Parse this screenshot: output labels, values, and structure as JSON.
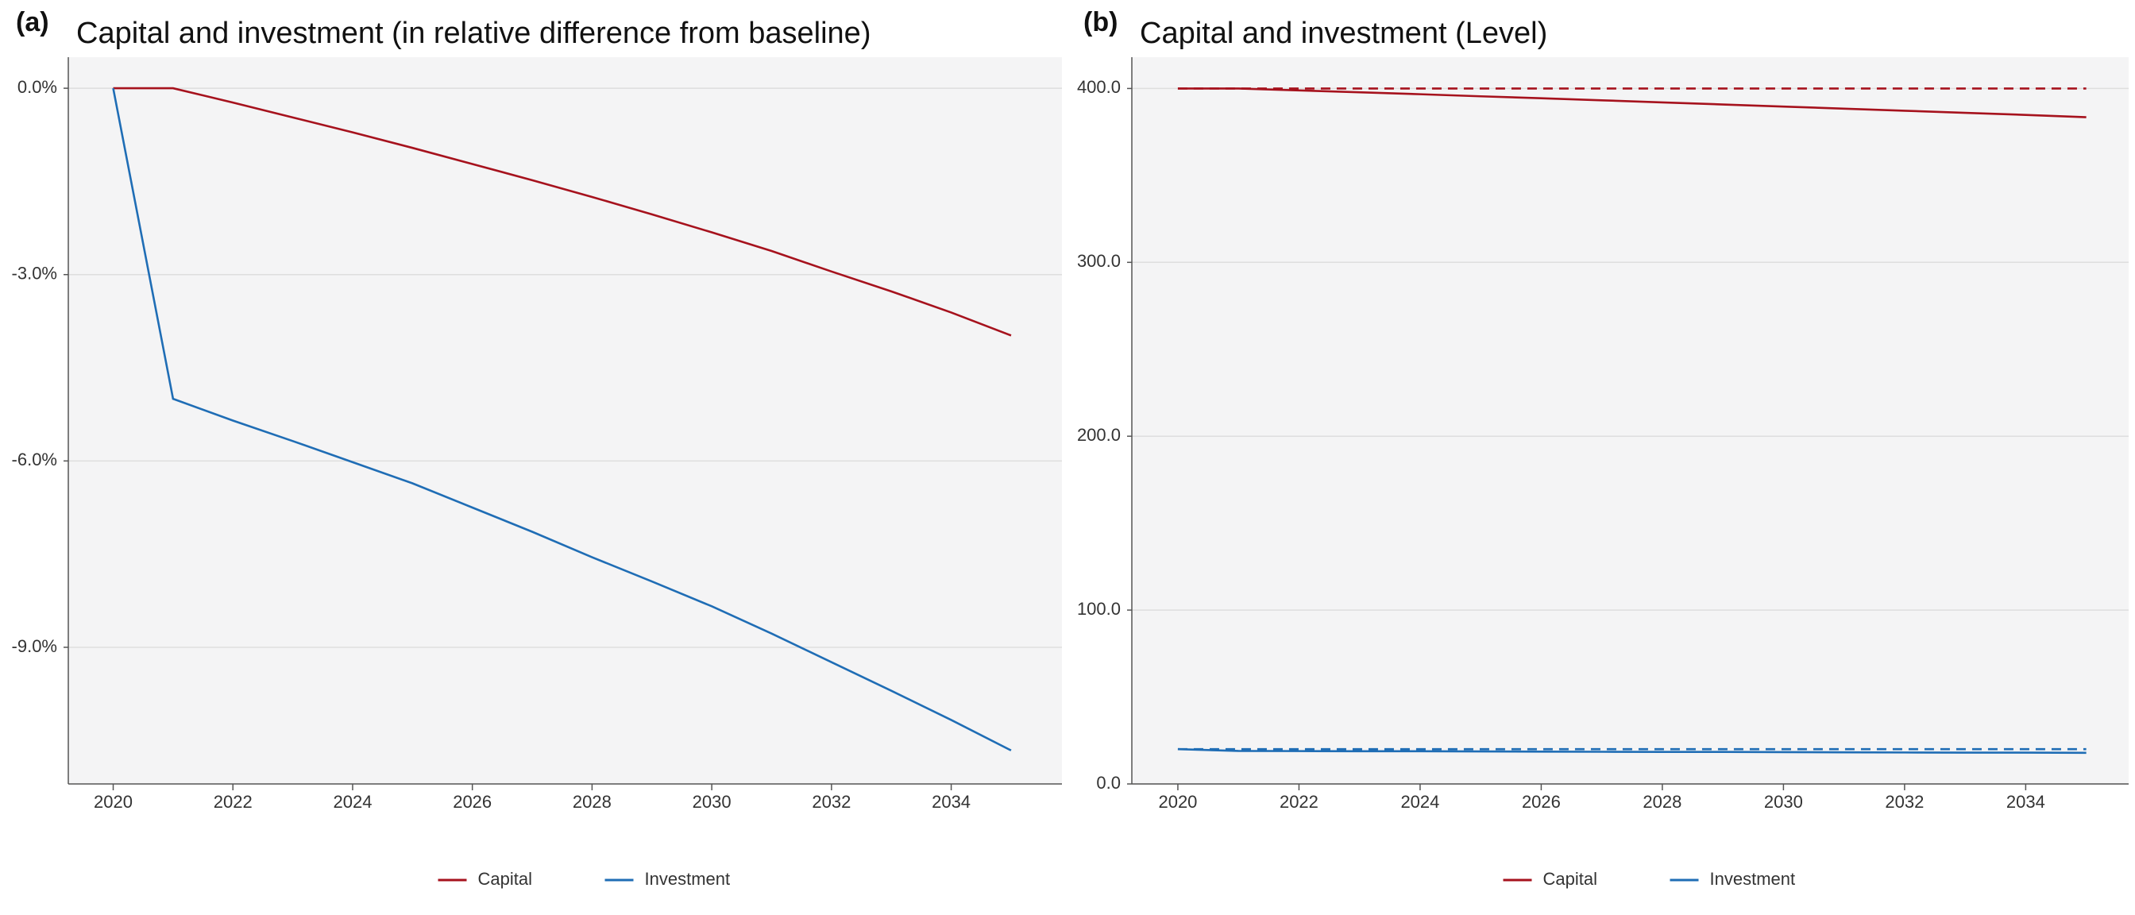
{
  "chart_data": [
    {
      "type": "line",
      "tag": "(a)",
      "title": "Capital and investment (in relative difference from baseline)",
      "x": [
        2020,
        2021,
        2022,
        2023,
        2024,
        2025,
        2026,
        2027,
        2028,
        2029,
        2030,
        2031,
        2032,
        2033,
        2034,
        2035
      ],
      "series": [
        {
          "name": "Capital",
          "color": "#a6121d",
          "values": [
            0,
            0,
            -0.23,
            -0.47,
            -0.71,
            -0.96,
            -1.22,
            -1.48,
            -1.75,
            -2.03,
            -2.32,
            -2.62,
            -2.95,
            -3.27,
            -3.61,
            -3.98
          ]
        },
        {
          "name": "Investment",
          "color": "#1f6db5",
          "values": [
            0,
            -5.0,
            -5.35,
            -5.68,
            -6.02,
            -6.36,
            -6.75,
            -7.14,
            -7.55,
            -7.94,
            -8.34,
            -8.78,
            -9.24,
            -9.7,
            -10.17,
            -10.66
          ]
        }
      ],
      "xlim": [
        2019.25,
        2035.85
      ],
      "xticks": [
        2020,
        2022,
        2024,
        2026,
        2028,
        2030,
        2032,
        2034
      ],
      "ylim": [
        -11.2,
        0.5
      ],
      "yticks": [
        {
          "value": 0,
          "label": "0.0%"
        },
        {
          "value": -3,
          "label": "-3.0%"
        },
        {
          "value": -6,
          "label": "-6.0%"
        },
        {
          "value": -9,
          "label": "-9.0%"
        }
      ],
      "grid": true,
      "legend": "bottom"
    },
    {
      "type": "line",
      "tag": "(b)",
      "title": "Capital and investment (Level)",
      "x": [
        2020,
        2021,
        2022,
        2023,
        2024,
        2025,
        2026,
        2027,
        2028,
        2029,
        2030,
        2031,
        2032,
        2033,
        2034,
        2035
      ],
      "series": [
        {
          "name": "Capital",
          "color": "#a6121d",
          "values": [
            400,
            400,
            398.9,
            397.8,
            396.7,
            395.5,
            394.4,
            393.2,
            392.0,
            390.8,
            389.6,
            388.4,
            387.2,
            386.0,
            384.8,
            383.5
          ]
        },
        {
          "name": "Investment",
          "color": "#1f6db5",
          "values": [
            20,
            19.0,
            18.9,
            18.8,
            18.8,
            18.7,
            18.6,
            18.5,
            18.4,
            18.4,
            18.3,
            18.2,
            18.1,
            18.0,
            18.0,
            17.9
          ]
        },
        {
          "name": "Capital",
          "color": "#a6121d",
          "dashed": true,
          "values": [
            400,
            400,
            400,
            400,
            400,
            400,
            400,
            400,
            400,
            400,
            400,
            400,
            400,
            400,
            400,
            400
          ]
        },
        {
          "name": "Investment",
          "color": "#1f6db5",
          "dashed": true,
          "values": [
            20,
            20,
            20,
            20,
            20,
            20,
            20,
            20,
            20,
            20,
            20,
            20,
            20,
            20,
            20,
            20
          ]
        }
      ],
      "xlim": [
        2019.24,
        2035.7
      ],
      "xticks": [
        2020,
        2022,
        2024,
        2026,
        2028,
        2030,
        2032,
        2034
      ],
      "ylim": [
        0,
        418
      ],
      "yticks": [
        {
          "value": 0,
          "label": "0.0"
        },
        {
          "value": 100,
          "label": "100.0"
        },
        {
          "value": 200,
          "label": "200.0"
        },
        {
          "value": 300,
          "label": "300.0"
        },
        {
          "value": 400,
          "label": "400.0"
        }
      ],
      "grid": true,
      "legend": "bottom"
    }
  ]
}
